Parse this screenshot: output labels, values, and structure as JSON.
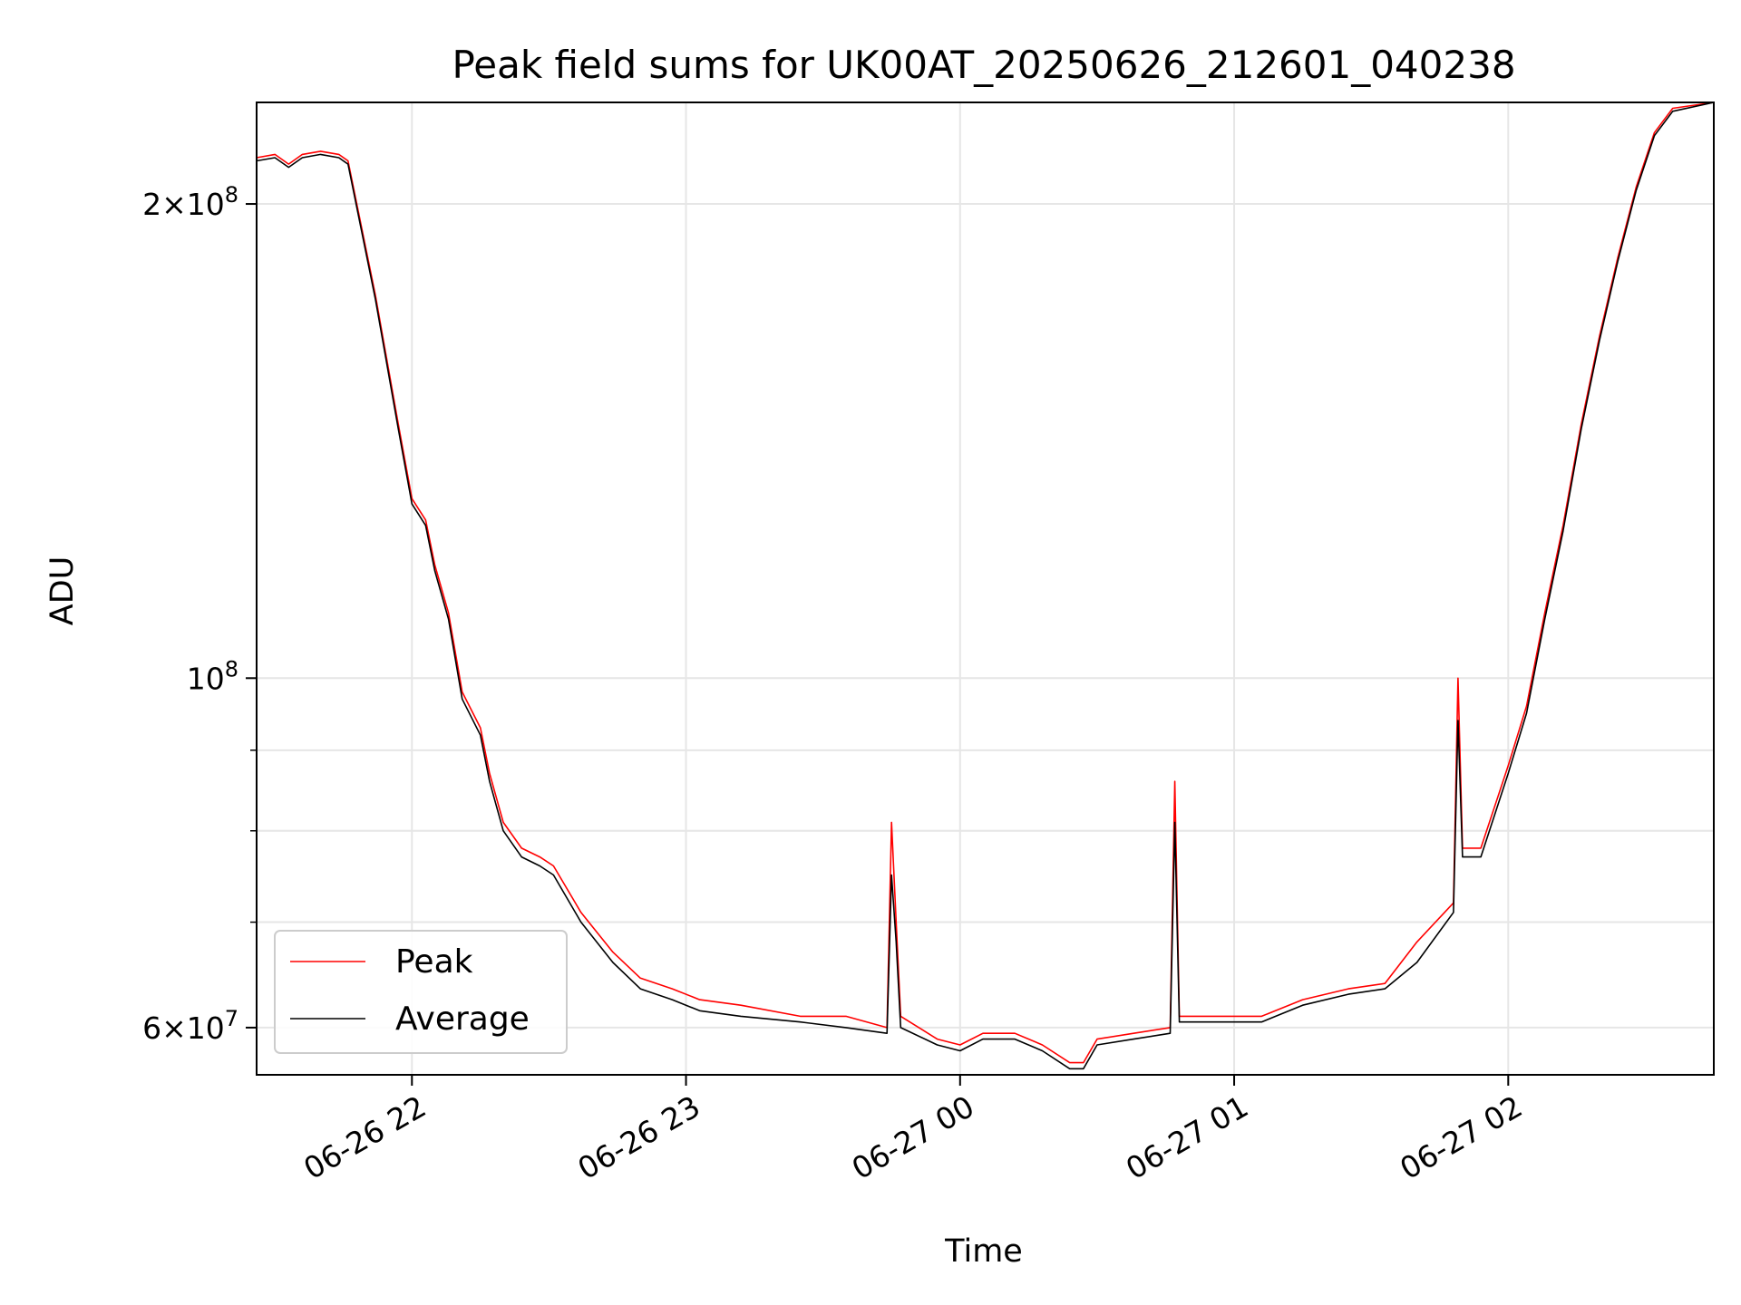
{
  "chart_data": {
    "type": "line",
    "title": "Peak field sums for UK00AT_20250626_212601_040238",
    "xlabel": "Time",
    "ylabel": "ADU",
    "y_scale": "log",
    "ylim": [
      56000000,
      232000000
    ],
    "xlim": [
      "2025-06-26 21:26",
      "2025-06-27 02:45"
    ],
    "x_ticks": [
      "06-26 22",
      "06-26 23",
      "06-27 00",
      "06-27 01",
      "06-27 02"
    ],
    "x_tick_values": [
      "2025-06-26 22:00",
      "2025-06-26 23:00",
      "2025-06-27 00:00",
      "2025-06-27 01:00",
      "2025-06-27 02:00"
    ],
    "y_ticks": [
      {
        "label": "2×10⁸",
        "mantissa": "2",
        "exp": "8",
        "value": 200000000
      },
      {
        "label": "10⁸",
        "mantissa": "",
        "exp": "8",
        "value": 100000000
      },
      {
        "label": "6×10⁷",
        "mantissa": "6",
        "exp": "7",
        "value": 60000000
      }
    ],
    "y_minor_ticks": [
      70000000,
      80000000,
      90000000
    ],
    "grid": true,
    "legend_position": "lower-left",
    "series": [
      {
        "name": "Peak",
        "color": "#ff0000",
        "x": [
          "2025-06-26 21:26",
          "2025-06-26 21:30",
          "2025-06-26 21:33",
          "2025-06-26 21:36",
          "2025-06-26 21:40",
          "2025-06-26 21:44",
          "2025-06-26 21:46",
          "2025-06-26 21:52",
          "2025-06-26 21:57",
          "2025-06-26 22:00",
          "2025-06-26 22:03",
          "2025-06-26 22:05",
          "2025-06-26 22:08",
          "2025-06-26 22:11",
          "2025-06-26 22:15",
          "2025-06-26 22:17",
          "2025-06-26 22:20",
          "2025-06-26 22:24",
          "2025-06-26 22:28",
          "2025-06-26 22:31",
          "2025-06-26 22:37",
          "2025-06-26 22:44",
          "2025-06-26 22:50",
          "2025-06-26 22:57",
          "2025-06-26 23:03",
          "2025-06-26 23:12",
          "2025-06-26 23:25",
          "2025-06-26 23:35",
          "2025-06-26 23:44",
          "2025-06-26 23:45",
          "2025-06-26 23:46",
          "2025-06-26 23:47",
          "2025-06-26 23:55",
          "2025-06-27 00:00",
          "2025-06-27 00:05",
          "2025-06-27 00:12",
          "2025-06-27 00:18",
          "2025-06-27 00:24",
          "2025-06-27 00:27",
          "2025-06-27 00:30",
          "2025-06-27 00:38",
          "2025-06-27 00:46",
          "2025-06-27 00:47",
          "2025-06-27 00:48",
          "2025-06-27 00:55",
          "2025-06-27 01:06",
          "2025-06-27 01:15",
          "2025-06-27 01:25",
          "2025-06-27 01:33",
          "2025-06-27 01:40",
          "2025-06-27 01:48",
          "2025-06-27 01:49",
          "2025-06-27 01:50",
          "2025-06-27 01:54",
          "2025-06-27 02:00",
          "2025-06-27 02:04",
          "2025-06-27 02:08",
          "2025-06-27 02:12",
          "2025-06-27 02:16",
          "2025-06-27 02:20",
          "2025-06-27 02:24",
          "2025-06-27 02:28",
          "2025-06-27 02:32",
          "2025-06-27 02:36",
          "2025-06-27 02:45"
        ],
        "y": [
          214000000,
          215000000,
          212000000,
          215000000,
          216000000,
          215000000,
          213000000,
          175000000,
          145000000,
          130000000,
          126000000,
          118000000,
          110000000,
          98000000,
          93000000,
          87000000,
          81000000,
          78000000,
          77000000,
          76000000,
          71000000,
          67000000,
          64500000,
          63500000,
          62500000,
          62000000,
          61000000,
          61000000,
          60000000,
          81000000,
          70000000,
          61000000,
          59000000,
          58500000,
          59500000,
          59500000,
          58500000,
          57000000,
          57000000,
          59000000,
          59500000,
          60000000,
          86000000,
          61000000,
          61000000,
          61000000,
          62500000,
          63500000,
          64000000,
          68000000,
          72000000,
          100000000,
          78000000,
          78000000,
          88000000,
          96000000,
          110000000,
          125000000,
          145000000,
          165000000,
          185000000,
          205000000,
          222000000,
          230000000,
          232000000
        ]
      },
      {
        "name": "Average",
        "color": "#000000",
        "x": [
          "2025-06-26 21:26",
          "2025-06-26 21:30",
          "2025-06-26 21:33",
          "2025-06-26 21:36",
          "2025-06-26 21:40",
          "2025-06-26 21:44",
          "2025-06-26 21:46",
          "2025-06-26 21:52",
          "2025-06-26 21:57",
          "2025-06-26 22:00",
          "2025-06-26 22:03",
          "2025-06-26 22:05",
          "2025-06-26 22:08",
          "2025-06-26 22:11",
          "2025-06-26 22:15",
          "2025-06-26 22:17",
          "2025-06-26 22:20",
          "2025-06-26 22:24",
          "2025-06-26 22:28",
          "2025-06-26 22:31",
          "2025-06-26 22:37",
          "2025-06-26 22:44",
          "2025-06-26 22:50",
          "2025-06-26 22:57",
          "2025-06-26 23:03",
          "2025-06-26 23:12",
          "2025-06-26 23:25",
          "2025-06-26 23:35",
          "2025-06-26 23:44",
          "2025-06-26 23:45",
          "2025-06-26 23:46",
          "2025-06-26 23:47",
          "2025-06-26 23:55",
          "2025-06-27 00:00",
          "2025-06-27 00:05",
          "2025-06-27 00:12",
          "2025-06-27 00:18",
          "2025-06-27 00:24",
          "2025-06-27 00:27",
          "2025-06-27 00:30",
          "2025-06-27 00:38",
          "2025-06-27 00:46",
          "2025-06-27 00:47",
          "2025-06-27 00:48",
          "2025-06-27 00:55",
          "2025-06-27 01:06",
          "2025-06-27 01:15",
          "2025-06-27 01:25",
          "2025-06-27 01:33",
          "2025-06-27 01:40",
          "2025-06-27 01:48",
          "2025-06-27 01:49",
          "2025-06-27 01:50",
          "2025-06-27 01:54",
          "2025-06-27 02:00",
          "2025-06-27 02:04",
          "2025-06-27 02:08",
          "2025-06-27 02:12",
          "2025-06-27 02:16",
          "2025-06-27 02:20",
          "2025-06-27 02:24",
          "2025-06-27 02:28",
          "2025-06-27 02:32",
          "2025-06-27 02:36",
          "2025-06-27 02:45"
        ],
        "y": [
          213000000,
          214000000,
          211000000,
          214000000,
          215000000,
          214000000,
          212000000,
          174000000,
          144000000,
          129000000,
          125000000,
          117000000,
          109000000,
          97000000,
          92000000,
          86000000,
          80000000,
          77000000,
          76000000,
          75000000,
          70000000,
          66000000,
          63500000,
          62500000,
          61500000,
          61000000,
          60500000,
          60000000,
          59500000,
          75000000,
          68000000,
          60000000,
          58500000,
          58000000,
          59000000,
          59000000,
          58000000,
          56500000,
          56500000,
          58500000,
          59000000,
          59500000,
          81000000,
          60500000,
          60500000,
          60500000,
          62000000,
          63000000,
          63500000,
          66000000,
          71000000,
          94000000,
          77000000,
          77000000,
          87000000,
          95000000,
          109000000,
          124000000,
          144000000,
          164000000,
          184000000,
          204000000,
          221000000,
          229000000,
          232000000
        ]
      }
    ]
  }
}
